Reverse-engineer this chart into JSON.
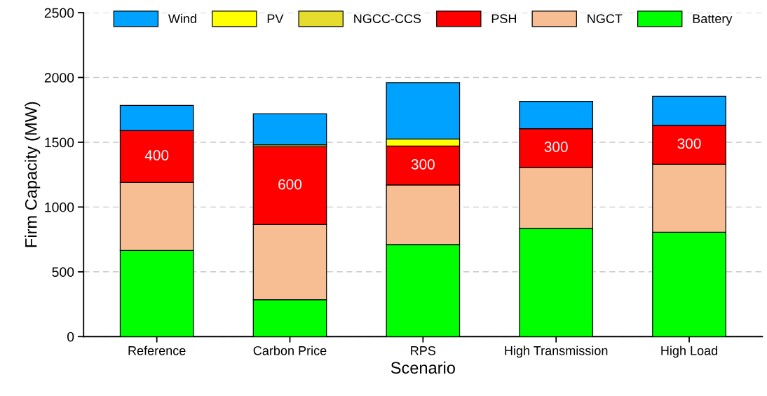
{
  "chart_data": {
    "type": "bar",
    "stacked": true,
    "xlabel": "Scenario",
    "ylabel": "Firm Capacity (MW)",
    "categories": [
      "Reference",
      "Carbon Price",
      "RPS",
      "High Transmission",
      "High Load"
    ],
    "series": [
      {
        "name": "Battery",
        "color": "#00ff00",
        "values": [
          665,
          285,
          710,
          835,
          805
        ]
      },
      {
        "name": "NGCT",
        "color": "#f7be93",
        "values": [
          525,
          580,
          460,
          470,
          525
        ]
      },
      {
        "name": "PSH",
        "color": "#ff0000",
        "values": [
          400,
          600,
          300,
          300,
          300
        ],
        "value_labels": [
          "400",
          "600",
          "300",
          "300",
          "300"
        ]
      },
      {
        "name": "NGCC-CCS",
        "color": "#e5dc2e",
        "values": [
          null,
          15,
          null,
          null,
          null
        ]
      },
      {
        "name": "PV",
        "color": "#ffff00",
        "values": [
          null,
          null,
          55,
          null,
          null
        ]
      },
      {
        "name": "Wind",
        "color": "#00a2ff",
        "values": [
          195,
          240,
          435,
          210,
          225
        ]
      }
    ],
    "ylim": [
      0,
      2500
    ],
    "yticks": [
      0,
      500,
      1000,
      1500,
      2000,
      2500
    ],
    "grid": "y",
    "legend": "top"
  }
}
